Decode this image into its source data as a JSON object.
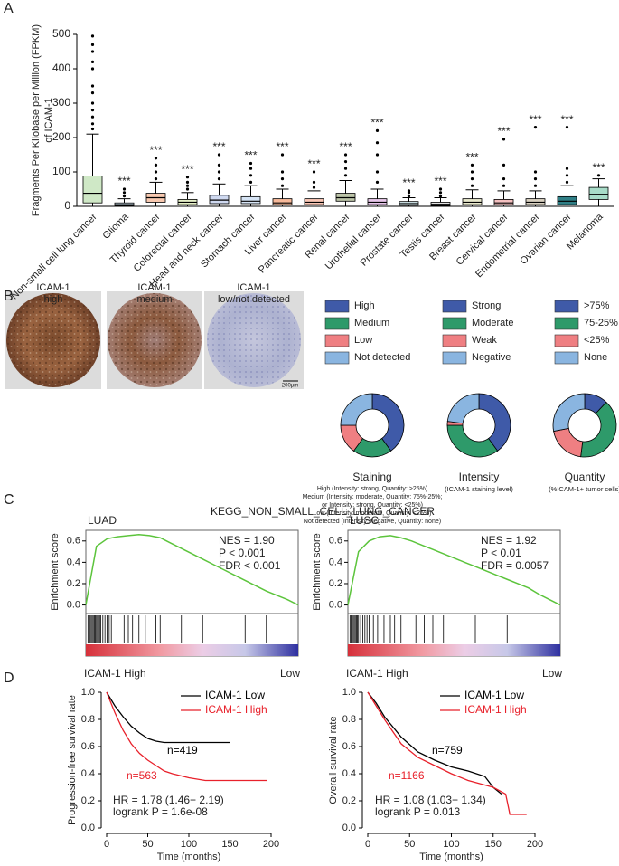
{
  "panel_labels": [
    "A",
    "B",
    "C",
    "D"
  ],
  "tissue_images": {
    "labels": [
      [
        "ICAM-1",
        "high"
      ],
      [
        "ICAM-1",
        "medium"
      ],
      [
        "ICAM-1",
        "low/not detected"
      ]
    ],
    "scale_bar": "200μm"
  },
  "gsea_title": "KEGG_NON_SMALL_CELL_LUNG_CANCER",
  "chart_data": [
    {
      "type": "box",
      "ylabel": [
        "Fragments Per Kilobase per Million (FPKM)",
        "of ICAM-1"
      ],
      "categories": [
        "Non-small cell lung cancer",
        "Glioma",
        "Thyroid cancer",
        "Colorectal cancer",
        "Head and neck cancer",
        "Stomach cancer",
        "Liver cancer",
        "Pancreatic cancer",
        "Renal cancer",
        "Urothelial cancer",
        "Prostate cancer",
        "Testis cancer",
        "Breast cancer",
        "Cervical cancer",
        "Endometrial cancer",
        "Ovarian cancer",
        "Melanoma"
      ],
      "whisker_low": [
        0,
        0,
        0,
        0,
        0,
        0,
        0,
        0,
        0,
        0,
        0,
        0,
        0,
        0,
        0,
        0,
        0
      ],
      "q1": [
        10,
        2,
        12,
        5,
        8,
        8,
        5,
        5,
        15,
        5,
        3,
        2,
        5,
        5,
        5,
        5,
        20
      ],
      "median": [
        38,
        5,
        25,
        12,
        18,
        15,
        10,
        12,
        25,
        12,
        8,
        6,
        12,
        10,
        12,
        15,
        35
      ],
      "q3": [
        88,
        10,
        38,
        20,
        32,
        28,
        22,
        22,
        38,
        22,
        14,
        12,
        22,
        20,
        22,
        28,
        55
      ],
      "whisker_high": [
        210,
        22,
        70,
        40,
        65,
        60,
        50,
        45,
        75,
        50,
        25,
        25,
        48,
        45,
        45,
        60,
        80
      ],
      "outliers": [
        [
          225,
          240,
          260,
          280,
          300,
          330,
          350,
          400,
          420,
          450,
          470,
          495
        ],
        [
          30,
          40,
          50
        ],
        [
          80,
          100,
          120,
          140
        ],
        [
          50,
          60,
          70,
          85
        ],
        [
          80,
          100,
          120,
          150
        ],
        [
          70,
          90,
          110,
          125
        ],
        [
          60,
          80,
          100,
          150
        ],
        [
          55,
          70,
          100
        ],
        [
          90,
          110,
          130,
          150
        ],
        [
          70,
          100,
          150,
          185,
          220
        ],
        [
          30,
          40,
          45
        ],
        [
          30,
          40,
          50
        ],
        [
          60,
          80,
          100,
          120
        ],
        [
          60,
          80,
          120,
          195
        ],
        [
          60,
          80,
          100,
          230
        ],
        [
          70,
          90,
          110,
          230
        ],
        [
          90
        ]
      ],
      "colors": [
        "#cfe8c6",
        "#cfe3f0",
        "#f8c9b0",
        "#e6f0c8",
        "#cfd9f0",
        "#d6e4f5",
        "#f7b99a",
        "#f9c6b5",
        "#bcc4a8",
        "#e7c6ea",
        "#d7edf1",
        "#e2e2e2",
        "#e8e8cc",
        "#f4c0c0",
        "#d8d0c0",
        "#2f7f86",
        "#a8dcc8"
      ],
      "annotations": [
        null,
        "***",
        "***",
        "***",
        "***",
        "***",
        "***",
        "***",
        "***",
        "***",
        "***",
        "***",
        "***",
        "***",
        "***",
        "***",
        "***"
      ],
      "ylim": [
        0,
        500
      ],
      "yticks": [
        0,
        100,
        200,
        300,
        400,
        500
      ]
    },
    {
      "type": "pie",
      "donut": true,
      "title": "Staining",
      "categories": [
        "High",
        "Medium",
        "Low",
        "Not detected"
      ],
      "values": [
        40,
        20,
        15,
        25
      ],
      "colors": [
        "#3f5aa8",
        "#2e9a6a",
        "#ef7f82",
        "#8ab5e0"
      ],
      "notes": [
        "High (Intensity: strong, Quantity: >25%)",
        "Medium (Intensity: moderate, Quantity: 75%-25%;",
        "or Intensity: strong, Quantity: <25%)",
        "Low (Intensity: moderate, Quantity: <25%)",
        "Not detected (Intensity: negative, Quantity: none)"
      ]
    },
    {
      "type": "pie",
      "donut": true,
      "title": "Intensity",
      "subtitle": "(ICAM-1 staining level)",
      "categories": [
        "Strong",
        "Moderate",
        "Weak",
        "Negative"
      ],
      "values": [
        40,
        35,
        2,
        23
      ],
      "colors": [
        "#3f5aa8",
        "#2e9a6a",
        "#ef7f82",
        "#8ab5e0"
      ]
    },
    {
      "type": "pie",
      "donut": true,
      "title": "Quantity",
      "subtitle": "(%ICAM-1+ tumor cells)",
      "categories": [
        ">75%",
        "75-25%",
        "<25%",
        "None"
      ],
      "values": [
        12,
        40,
        20,
        28
      ],
      "colors": [
        "#3f5aa8",
        "#2e9a6a",
        "#ef7f82",
        "#8ab5e0"
      ]
    },
    {
      "type": "gsea",
      "title": "LUAD",
      "ylabel": "Enrichment score",
      "color": "#5cc43c",
      "values": [
        0,
        0.55,
        0.62,
        0.64,
        0.65,
        0.66,
        0.65,
        0.63,
        0.58,
        0.53,
        0.48,
        0.43,
        0.38,
        0.33,
        0.28,
        0.23,
        0.18,
        0.13,
        0.09,
        0.05,
        0
      ],
      "hits": [
        0.01,
        0.015,
        0.02,
        0.025,
        0.03,
        0.035,
        0.04,
        0.045,
        0.05,
        0.055,
        0.06,
        0.065,
        0.07,
        0.08,
        0.09,
        0.1,
        0.11,
        0.12,
        0.18,
        0.2,
        0.22,
        0.25,
        0.28,
        0.33,
        0.35,
        0.45,
        0.55,
        0.75,
        0.85
      ],
      "annotations": [
        "NES = 1.90",
        "P < 0.001",
        "FDR < 0.001"
      ],
      "rank_labels": [
        "ICAM-1 High",
        "Low"
      ],
      "ylim": [
        -0.08,
        0.7
      ],
      "yticks": [
        {
          "value": 0,
          "label": "0.0"
        },
        {
          "value": 0.2,
          "label": "0.2"
        },
        {
          "value": 0.4,
          "label": "0.4"
        },
        {
          "value": 0.6,
          "label": "0.6"
        }
      ]
    },
    {
      "type": "gsea",
      "title": "LUSC",
      "ylabel": "Enrichment score",
      "color": "#5cc43c",
      "values": [
        0,
        0.5,
        0.6,
        0.64,
        0.65,
        0.63,
        0.6,
        0.56,
        0.52,
        0.48,
        0.44,
        0.4,
        0.36,
        0.32,
        0.28,
        0.24,
        0.2,
        0.16,
        0.1,
        0.05,
        0
      ],
      "hits": [
        0.01,
        0.015,
        0.02,
        0.025,
        0.03,
        0.035,
        0.04,
        0.045,
        0.05,
        0.06,
        0.07,
        0.08,
        0.09,
        0.1,
        0.12,
        0.14,
        0.17,
        0.2,
        0.22,
        0.25,
        0.32,
        0.36,
        0.4,
        0.45,
        0.6,
        0.75
      ],
      "annotations": [
        "NES = 1.92",
        "P < 0.01",
        "FDR = 0.0057"
      ],
      "rank_labels": [
        "ICAM-1 High",
        "Low"
      ],
      "ylim": [
        -0.08,
        0.7
      ],
      "yticks": [
        {
          "value": 0,
          "label": "0.0"
        },
        {
          "value": 0.2,
          "label": "0.2"
        },
        {
          "value": 0.4,
          "label": "0.4"
        },
        {
          "value": 0.6,
          "label": "0.6"
        }
      ]
    },
    {
      "type": "km",
      "ylabel": "Progression-free survival rate",
      "xlabel": "Time (months)",
      "series": [
        {
          "name": "ICAM-1 Low",
          "color": "#000000",
          "n_label": "n=419",
          "x": [
            0,
            10,
            20,
            30,
            40,
            50,
            60,
            70,
            80,
            100,
            120,
            150
          ],
          "values": [
            1,
            0.9,
            0.82,
            0.75,
            0.7,
            0.66,
            0.64,
            0.63,
            0.63,
            0.63,
            0.63,
            0.63
          ]
        },
        {
          "name": "ICAM-1 High",
          "color": "#e8212b",
          "n_label": "n=563",
          "x": [
            0,
            10,
            20,
            30,
            40,
            50,
            60,
            70,
            80,
            100,
            120,
            150,
            195
          ],
          "values": [
            1,
            0.85,
            0.72,
            0.62,
            0.55,
            0.5,
            0.46,
            0.42,
            0.4,
            0.37,
            0.35,
            0.35,
            0.35
          ]
        }
      ],
      "stats": [
        "HR = 1.78 (1.46− 2.19)",
        "logrank P = 1.6e-08"
      ],
      "xlim": [
        0,
        200
      ],
      "xticks": [
        0,
        50,
        100,
        150,
        200
      ],
      "ylim": [
        0,
        1
      ],
      "yticks": [
        {
          "value": 0,
          "label": "0.0"
        },
        {
          "value": 0.2,
          "label": "0.2"
        },
        {
          "value": 0.4,
          "label": "0.4"
        },
        {
          "value": 0.6,
          "label": "0.6"
        },
        {
          "value": 0.8,
          "label": "0.8"
        },
        {
          "value": 1,
          "label": "1.0"
        }
      ]
    },
    {
      "type": "km",
      "ylabel": "Overall survival rate",
      "xlabel": "Time (months)",
      "series": [
        {
          "name": "ICAM-1 Low",
          "color": "#000000",
          "n_label": "n=759",
          "x": [
            0,
            10,
            20,
            40,
            60,
            80,
            100,
            120,
            140,
            150,
            160
          ],
          "values": [
            1,
            0.92,
            0.82,
            0.67,
            0.56,
            0.5,
            0.45,
            0.42,
            0.38,
            0.3,
            0.25
          ]
        },
        {
          "name": "ICAM-1 High",
          "color": "#e8212b",
          "n_label": "n=1166",
          "x": [
            0,
            10,
            20,
            40,
            60,
            80,
            100,
            120,
            150,
            165,
            170,
            175,
            190
          ],
          "values": [
            1,
            0.9,
            0.8,
            0.62,
            0.52,
            0.46,
            0.4,
            0.35,
            0.3,
            0.25,
            0.1,
            0.1,
            0.1
          ]
        }
      ],
      "stats": [
        "HR = 1.08 (1.03− 1.34)",
        "logrank P = 0.013"
      ],
      "xlim": [
        0,
        200
      ],
      "xticks": [
        0,
        50,
        100,
        150,
        200
      ],
      "ylim": [
        0,
        1
      ],
      "yticks": [
        {
          "value": 0,
          "label": "0.0"
        },
        {
          "value": 0.2,
          "label": "0.2"
        },
        {
          "value": 0.4,
          "label": "0.4"
        },
        {
          "value": 0.6,
          "label": "0.6"
        },
        {
          "value": 0.8,
          "label": "0.8"
        },
        {
          "value": 1,
          "label": "1.0"
        }
      ]
    }
  ]
}
